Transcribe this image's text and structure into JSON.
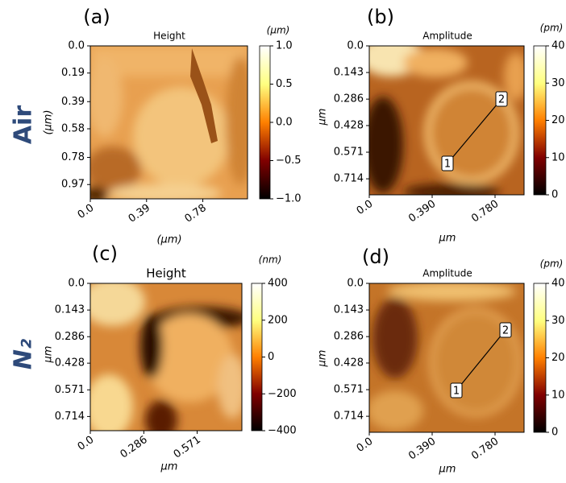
{
  "row_labels": [
    "Air",
    "N₂"
  ],
  "chart_data": [
    {
      "type": "image",
      "panel_label": "(a)",
      "title": "Height",
      "xlabel": "(µm)",
      "ylabel": "(µm)",
      "colorbar_label": "(µm)",
      "colormap": "afmhot",
      "xlim": [
        0,
        1.09
      ],
      "ylim": [
        1.07,
        0
      ],
      "xticks": [
        {
          "value": 0,
          "label": "0.0"
        },
        0.39,
        0.78
      ],
      "yticks": [
        {
          "value": 0,
          "label": "0.0"
        },
        0.19,
        0.39,
        0.58,
        0.78,
        0.97
      ],
      "colorbar_lim": [
        -1,
        1
      ],
      "colorbar_ticks": [
        {
          "value": 1,
          "label": "1.0"
        },
        0.5,
        {
          "value": 0,
          "label": "0.0"
        },
        {
          "value": -0.5,
          "label": "−0.5"
        },
        {
          "value": -1,
          "label": "−1.0"
        }
      ]
    },
    {
      "type": "image",
      "panel_label": "(b)",
      "title": "Amplitude",
      "xlabel": "µm",
      "ylabel": "µm",
      "colorbar_label": "(pm)",
      "colormap": "afmhot",
      "xlim": [
        0,
        0.96
      ],
      "ylim": [
        0.8,
        0
      ],
      "xticks": [
        {
          "value": 0,
          "label": "0.0"
        },
        {
          "value": 0.39,
          "label": "0.390"
        },
        {
          "value": 0.78,
          "label": "0.780"
        }
      ],
      "yticks": [
        {
          "value": 0,
          "label": "0.0"
        },
        0.143,
        0.286,
        0.428,
        0.571,
        0.714
      ],
      "colorbar_lim": [
        0,
        40
      ],
      "colorbar_ticks": [
        0,
        10,
        20,
        30,
        40
      ],
      "annotations": [
        "1",
        "2"
      ]
    },
    {
      "type": "image",
      "panel_label": "(c)",
      "title": "Height",
      "xlabel": "µm",
      "ylabel": "µm",
      "colorbar_label": "(nm)",
      "colormap": "afmhot",
      "xlim": [
        0,
        0.81
      ],
      "ylim": [
        0.79,
        0
      ],
      "xticks": [
        {
          "value": 0,
          "label": "0.0"
        },
        0.286,
        0.571
      ],
      "yticks": [
        {
          "value": 0,
          "label": "0.0"
        },
        0.143,
        0.286,
        0.428,
        0.571,
        0.714
      ],
      "colorbar_lim": [
        -400,
        400
      ],
      "colorbar_ticks": [
        400,
        200,
        0,
        {
          "value": -200,
          "label": "−200"
        },
        {
          "value": -400,
          "label": "−400"
        }
      ]
    },
    {
      "type": "image",
      "panel_label": "(d)",
      "title": "Amplitude",
      "xlabel": "µm",
      "ylabel": "µm",
      "colorbar_label": "(pm)",
      "colormap": "afmhot",
      "xlim": [
        0,
        0.96
      ],
      "ylim": [
        0.8,
        0
      ],
      "xticks": [
        {
          "value": 0,
          "label": "0.0"
        },
        {
          "value": 0.39,
          "label": "0.390"
        },
        {
          "value": 0.78,
          "label": "0.780"
        }
      ],
      "yticks": [
        {
          "value": 0,
          "label": "0.0"
        },
        0.143,
        0.286,
        0.428,
        0.571,
        0.714
      ],
      "colorbar_lim": [
        0,
        40
      ],
      "colorbar_ticks": [
        0,
        10,
        20,
        30,
        40
      ],
      "annotations": [
        "1",
        "2"
      ]
    }
  ]
}
